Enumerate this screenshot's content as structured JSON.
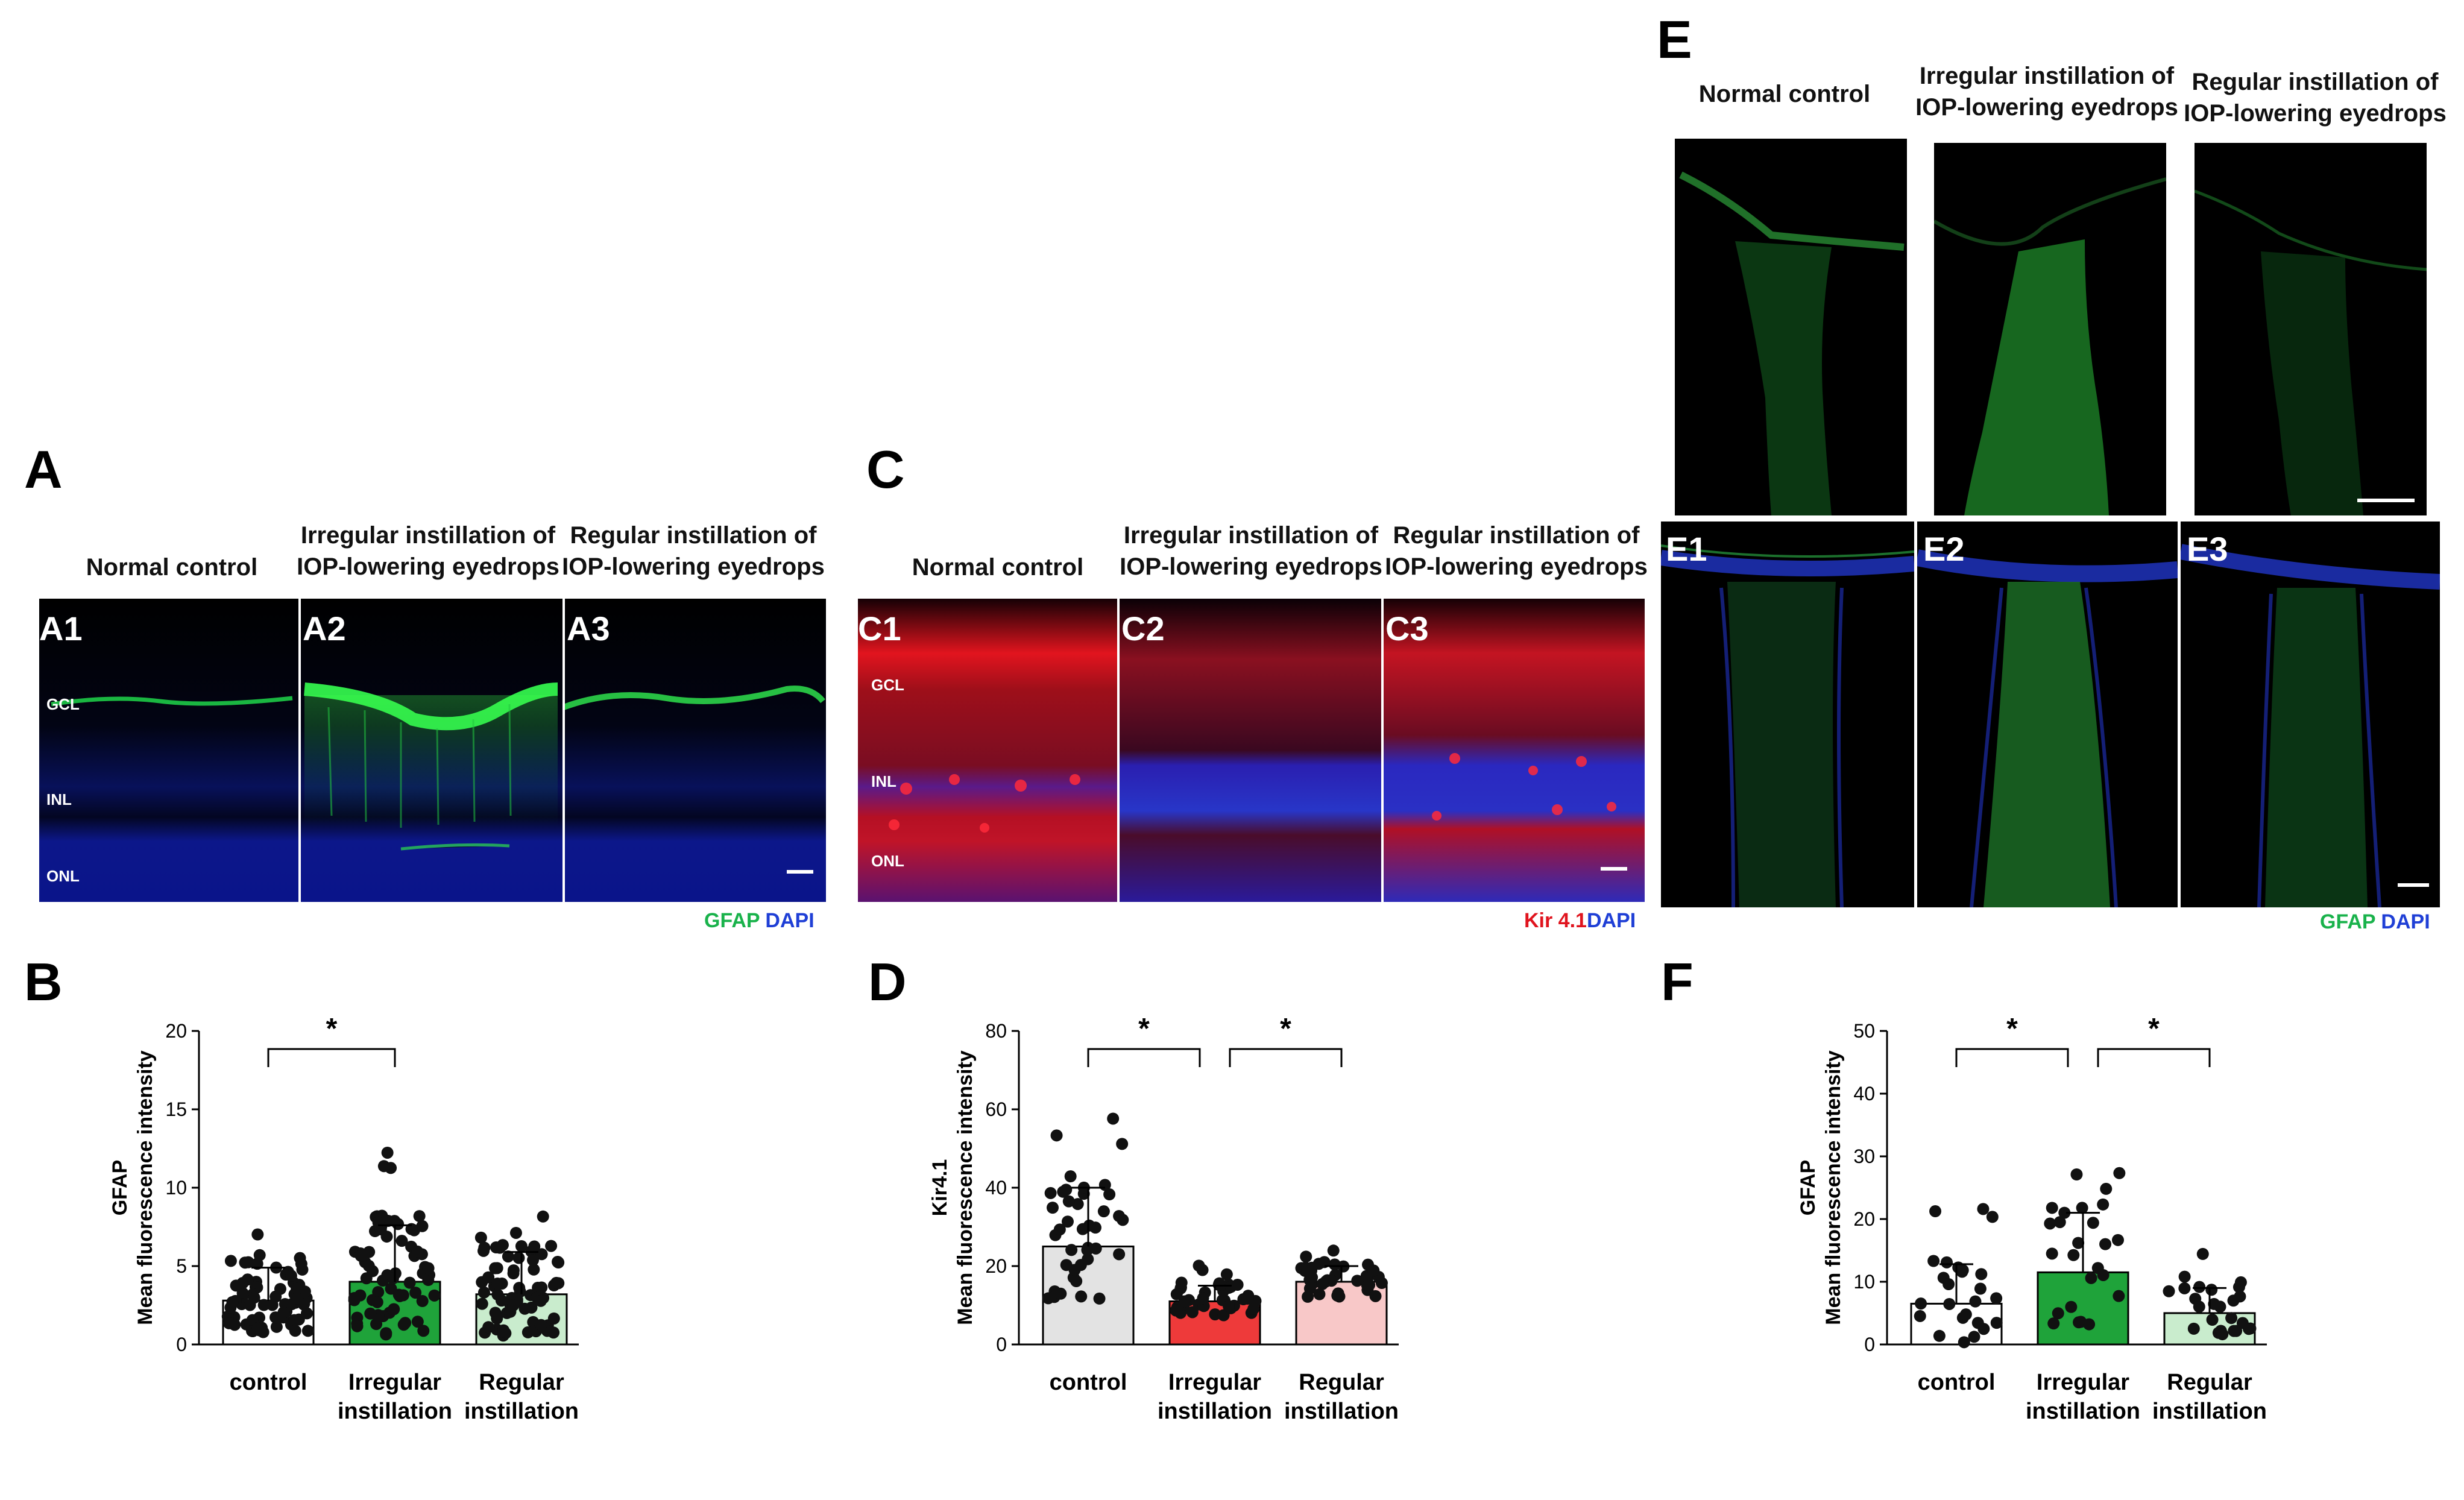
{
  "panels": {
    "A": {
      "letter": "A",
      "conditions": [
        "Normal control",
        "Irregular instillation of\nIOP-lowering eyedrops",
        "Regular instillation of\nIOP-lowering eyedrops"
      ],
      "image_labels": [
        "A1",
        "A2",
        "A3"
      ],
      "layers": [
        "GCL",
        "INL",
        "ONL"
      ],
      "stain": {
        "marker": "GFAP",
        "counter": "DAPI",
        "marker_color": "#19b24b",
        "counter_color": "#1f3fd6"
      }
    },
    "C": {
      "letter": "C",
      "conditions": [
        "Normal control",
        "Irregular instillation of\nIOP-lowering eyedrops",
        "Regular instillation of\nIOP-lowering eyedrops"
      ],
      "image_labels": [
        "C1",
        "C2",
        "C3"
      ],
      "layers": [
        "GCL",
        "INL",
        "ONL"
      ],
      "stain": {
        "marker": "Kir 4.1",
        "counter": "DAPI",
        "marker_color": "#e0141e",
        "counter_color": "#1f3fd6"
      }
    },
    "E": {
      "letter": "E",
      "conditions": [
        "Normal control",
        "Irregular instillation of\nIOP-lowering eyedrops",
        "Regular instillation of\nIOP-lowering eyedrops"
      ],
      "image_labels": [
        "E1",
        "E2",
        "E3"
      ],
      "stain": {
        "marker": "GFAP",
        "counter": "DAPI",
        "marker_color": "#19b24b",
        "counter_color": "#1f3fd6"
      }
    },
    "B": {
      "letter": "B"
    },
    "D": {
      "letter": "D"
    },
    "F": {
      "letter": "F"
    }
  },
  "chart_data": [
    {
      "panel": "B",
      "type": "bar",
      "ylabel": [
        "GFAP",
        "Mean fluorescence intensity"
      ],
      "ylim": [
        0,
        20
      ],
      "yticks": [
        0,
        5,
        10,
        15,
        20
      ],
      "categories": [
        "control",
        "Irregular\ninstillation",
        "Regular\ninstillation"
      ],
      "values": [
        2.8,
        4.0,
        3.2
      ],
      "errors": [
        2.1,
        3.6,
        2.7
      ],
      "colors": [
        "#ffffff",
        "#1fa33a",
        "#c9eccd"
      ],
      "significance": [
        {
          "from": 0,
          "to": 1,
          "label": "*"
        }
      ]
    },
    {
      "panel": "D",
      "type": "bar",
      "ylabel": [
        "Kir4.1",
        "Mean fluorescence intensity"
      ],
      "ylim": [
        0,
        80
      ],
      "yticks": [
        0,
        20,
        40,
        60,
        80
      ],
      "categories": [
        "control",
        "Irregular\ninstillation",
        "Regular\ninstillation"
      ],
      "values": [
        25,
        11,
        16
      ],
      "errors": [
        15,
        4,
        4
      ],
      "colors": [
        "#e3e3e3",
        "#ee3a3a",
        "#f8c8c8"
      ],
      "significance": [
        {
          "from": 0,
          "to": 1,
          "label": "*"
        },
        {
          "from": 1,
          "to": 2,
          "label": "*"
        }
      ]
    },
    {
      "panel": "F",
      "type": "bar",
      "ylabel": [
        "GFAP",
        "Mean fluorescence intensity"
      ],
      "ylim": [
        0,
        50
      ],
      "yticks": [
        0,
        10,
        20,
        30,
        40,
        50
      ],
      "categories": [
        "control",
        "Irregular\ninstillation",
        "Regular\ninstillation"
      ],
      "values": [
        6.5,
        11.5,
        5.0
      ],
      "errors": [
        6.3,
        9.5,
        4.0
      ],
      "colors": [
        "#ffffff",
        "#1fa33a",
        "#c9eccd"
      ],
      "significance": [
        {
          "from": 0,
          "to": 1,
          "label": "*"
        },
        {
          "from": 1,
          "to": 2,
          "label": "*"
        }
      ]
    }
  ]
}
